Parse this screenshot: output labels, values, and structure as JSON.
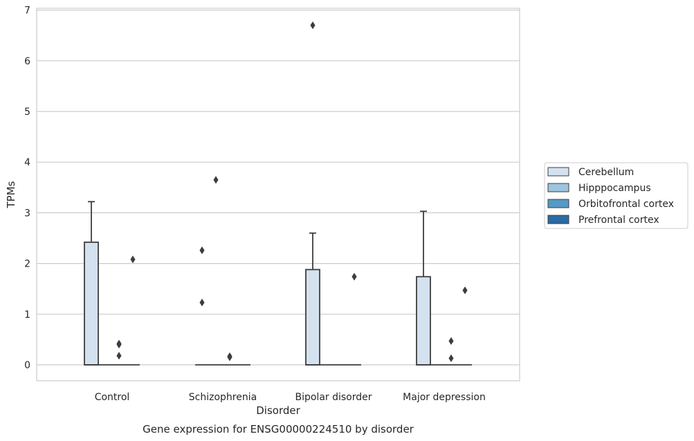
{
  "caption": "Gene expression for ENSG00000224510 by disorder",
  "chart_data": {
    "type": "box",
    "title": "",
    "xlabel": "Disorder",
    "ylabel": "TPMs",
    "categories": [
      "Control",
      "Schizophrenia",
      "Bipolar disorder",
      "Major depression"
    ],
    "yticks": [
      0,
      1,
      2,
      3,
      4,
      5,
      6,
      7
    ],
    "ylim": [
      -0.32,
      7.06
    ],
    "grid": "horizontal",
    "legend_position": "right",
    "colors": {
      "Cerebellum": "#d4e1ef",
      "Hipppocampus": "#9ec4de",
      "Orbitofrontal cortex": "#5799c6",
      "Prefrontal cortex": "#2b6ba3"
    },
    "series": [
      {
        "name": "Cerebellum",
        "boxes": [
          {
            "category": "Control",
            "q1": 0,
            "median": 0,
            "q3": 2.42,
            "whisker_low": 0,
            "whisker_high": 3.22
          },
          {
            "category": "Schizophrenia",
            "q1": 0,
            "median": 0,
            "q3": 0,
            "whisker_low": 0,
            "whisker_high": 0
          },
          {
            "category": "Bipolar disorder",
            "q1": 0,
            "median": 0,
            "q3": 1.88,
            "whisker_low": 0,
            "whisker_high": 2.6
          },
          {
            "category": "Major depression",
            "q1": 0,
            "median": 0,
            "q3": 1.74,
            "whisker_low": 0,
            "whisker_high": 3.03
          }
        ],
        "outliers": [
          {
            "category": "Schizophrenia",
            "value": 1.23
          },
          {
            "category": "Schizophrenia",
            "value": 2.26
          },
          {
            "category": "Bipolar disorder",
            "value": 6.7
          }
        ]
      },
      {
        "name": "Hipppocampus",
        "boxes": [
          {
            "category": "Control",
            "q1": 0,
            "median": 0,
            "q3": 0,
            "whisker_low": 0,
            "whisker_high": 0
          },
          {
            "category": "Schizophrenia",
            "q1": 0,
            "median": 0,
            "q3": 0,
            "whisker_low": 0,
            "whisker_high": 0
          },
          {
            "category": "Bipolar disorder",
            "q1": 0,
            "median": 0,
            "q3": 0,
            "whisker_low": 0,
            "whisker_high": 0
          },
          {
            "category": "Major depression",
            "q1": 0,
            "median": 0,
            "q3": 0,
            "whisker_low": 0,
            "whisker_high": 0
          }
        ],
        "outliers": [
          {
            "category": "Schizophrenia",
            "value": 3.65
          }
        ]
      },
      {
        "name": "Orbitofrontal cortex",
        "boxes": [
          {
            "category": "Control",
            "q1": 0,
            "median": 0,
            "q3": 0,
            "whisker_low": 0,
            "whisker_high": 0
          },
          {
            "category": "Schizophrenia",
            "q1": 0,
            "median": 0,
            "q3": 0,
            "whisker_low": 0,
            "whisker_high": 0
          },
          {
            "category": "Bipolar disorder",
            "q1": 0,
            "median": 0,
            "q3": 0,
            "whisker_low": 0,
            "whisker_high": 0
          },
          {
            "category": "Major depression",
            "q1": 0,
            "median": 0,
            "q3": 0,
            "whisker_low": 0,
            "whisker_high": 0
          }
        ],
        "outliers": [
          {
            "category": "Control",
            "value": 0.18
          },
          {
            "category": "Control",
            "value": 0.4
          },
          {
            "category": "Control",
            "value": 0.42
          },
          {
            "category": "Schizophrenia",
            "value": 0.15
          },
          {
            "category": "Schizophrenia",
            "value": 0.17
          },
          {
            "category": "Major depression",
            "value": 0.13
          },
          {
            "category": "Major depression",
            "value": 0.47
          }
        ]
      },
      {
        "name": "Prefrontal cortex",
        "boxes": [
          {
            "category": "Control",
            "q1": 0,
            "median": 0,
            "q3": 0,
            "whisker_low": 0,
            "whisker_high": 0
          },
          {
            "category": "Schizophrenia",
            "q1": 0,
            "median": 0,
            "q3": 0,
            "whisker_low": 0,
            "whisker_high": 0
          },
          {
            "category": "Bipolar disorder",
            "q1": 0,
            "median": 0,
            "q3": 0,
            "whisker_low": 0,
            "whisker_high": 0
          },
          {
            "category": "Major depression",
            "q1": 0,
            "median": 0,
            "q3": 0,
            "whisker_low": 0,
            "whisker_high": 0
          }
        ],
        "outliers": [
          {
            "category": "Control",
            "value": 2.08
          },
          {
            "category": "Bipolar disorder",
            "value": 1.74
          },
          {
            "category": "Major depression",
            "value": 1.47
          }
        ]
      }
    ]
  }
}
